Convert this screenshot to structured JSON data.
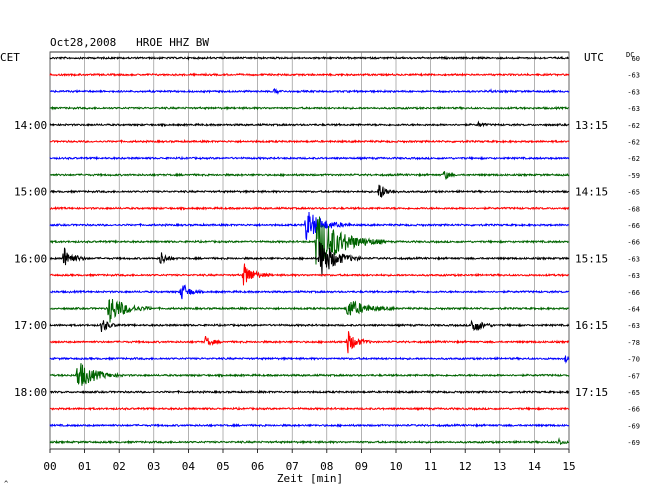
{
  "chart_data": {
    "type": "line",
    "title": "Oct28,2008   HROE HHZ BW",
    "xlabel": "Zeit [min]",
    "left_axis_label": "CET",
    "right_axis_label": "UTC",
    "dc_label": "DC",
    "xlim": [
      0,
      15
    ],
    "x_ticks": [
      "00",
      "01",
      "02",
      "03",
      "04",
      "05",
      "06",
      "07",
      "08",
      "09",
      "10",
      "11",
      "12",
      "13",
      "14",
      "15"
    ],
    "left_time_labels": [
      {
        "row": 4,
        "text": "14:00"
      },
      {
        "row": 8,
        "text": "15:00"
      },
      {
        "row": 12,
        "text": "16:00"
      },
      {
        "row": 16,
        "text": "17:00"
      },
      {
        "row": 20,
        "text": "18:00"
      }
    ],
    "right_time_labels": [
      {
        "row": 4,
        "text": "13:15"
      },
      {
        "row": 8,
        "text": "14:15"
      },
      {
        "row": 12,
        "text": "15:15"
      },
      {
        "row": 16,
        "text": "16:15"
      },
      {
        "row": 20,
        "text": "17:15"
      }
    ],
    "dc_values": [
      "60",
      "-63",
      "-63",
      "-63",
      "-62",
      "-62",
      "-62",
      "-59",
      "-65",
      "-68",
      "-66",
      "-66",
      "-63",
      "-63",
      "-66",
      "-64",
      "-63",
      "-78",
      "-70",
      "-67",
      "-65",
      "-66",
      "-69",
      "-69"
    ],
    "trace_colors": [
      "#000000",
      "#ff0000",
      "#0000ff",
      "#006400"
    ],
    "noise_amplitude": 1.0,
    "events": [
      {
        "row": 2,
        "minute": 6.5,
        "amplitude": 3,
        "duration": 0.3
      },
      {
        "row": 2,
        "minute": 12.7,
        "amplitude": 2,
        "duration": 0.2
      },
      {
        "row": 4,
        "minute": 12.4,
        "amplitude": 3,
        "duration": 0.3
      },
      {
        "row": 7,
        "minute": 11.4,
        "amplitude": 6,
        "duration": 0.3
      },
      {
        "row": 8,
        "minute": 9.5,
        "amplitude": 9,
        "duration": 0.6
      },
      {
        "row": 10,
        "minute": 7.4,
        "amplitude": 16,
        "duration": 1.3
      },
      {
        "row": 11,
        "minute": 7.7,
        "amplitude": 30,
        "duration": 2.0
      },
      {
        "row": 12,
        "minute": 0.4,
        "amplitude": 12,
        "duration": 0.7
      },
      {
        "row": 12,
        "minute": 3.2,
        "amplitude": 7,
        "duration": 0.5
      },
      {
        "row": 12,
        "minute": 7.8,
        "amplitude": 22,
        "duration": 1.2
      },
      {
        "row": 13,
        "minute": 5.6,
        "amplitude": 12,
        "duration": 0.8
      },
      {
        "row": 14,
        "minute": 3.8,
        "amplitude": 10,
        "duration": 0.6
      },
      {
        "row": 15,
        "minute": 1.7,
        "amplitude": 15,
        "duration": 1.3
      },
      {
        "row": 15,
        "minute": 8.6,
        "amplitude": 10,
        "duration": 1.4
      },
      {
        "row": 16,
        "minute": 1.5,
        "amplitude": 8,
        "duration": 0.5
      },
      {
        "row": 16,
        "minute": 12.2,
        "amplitude": 9,
        "duration": 0.7
      },
      {
        "row": 17,
        "minute": 4.5,
        "amplitude": 6,
        "duration": 0.5
      },
      {
        "row": 17,
        "minute": 8.6,
        "amplitude": 12,
        "duration": 0.7
      },
      {
        "row": 18,
        "minute": 14.9,
        "amplitude": 4,
        "duration": 0.2
      },
      {
        "row": 19,
        "minute": 0.8,
        "amplitude": 15,
        "duration": 1.3
      },
      {
        "row": 23,
        "minute": 14.7,
        "amplitude": 4,
        "duration": 0.3
      }
    ]
  }
}
